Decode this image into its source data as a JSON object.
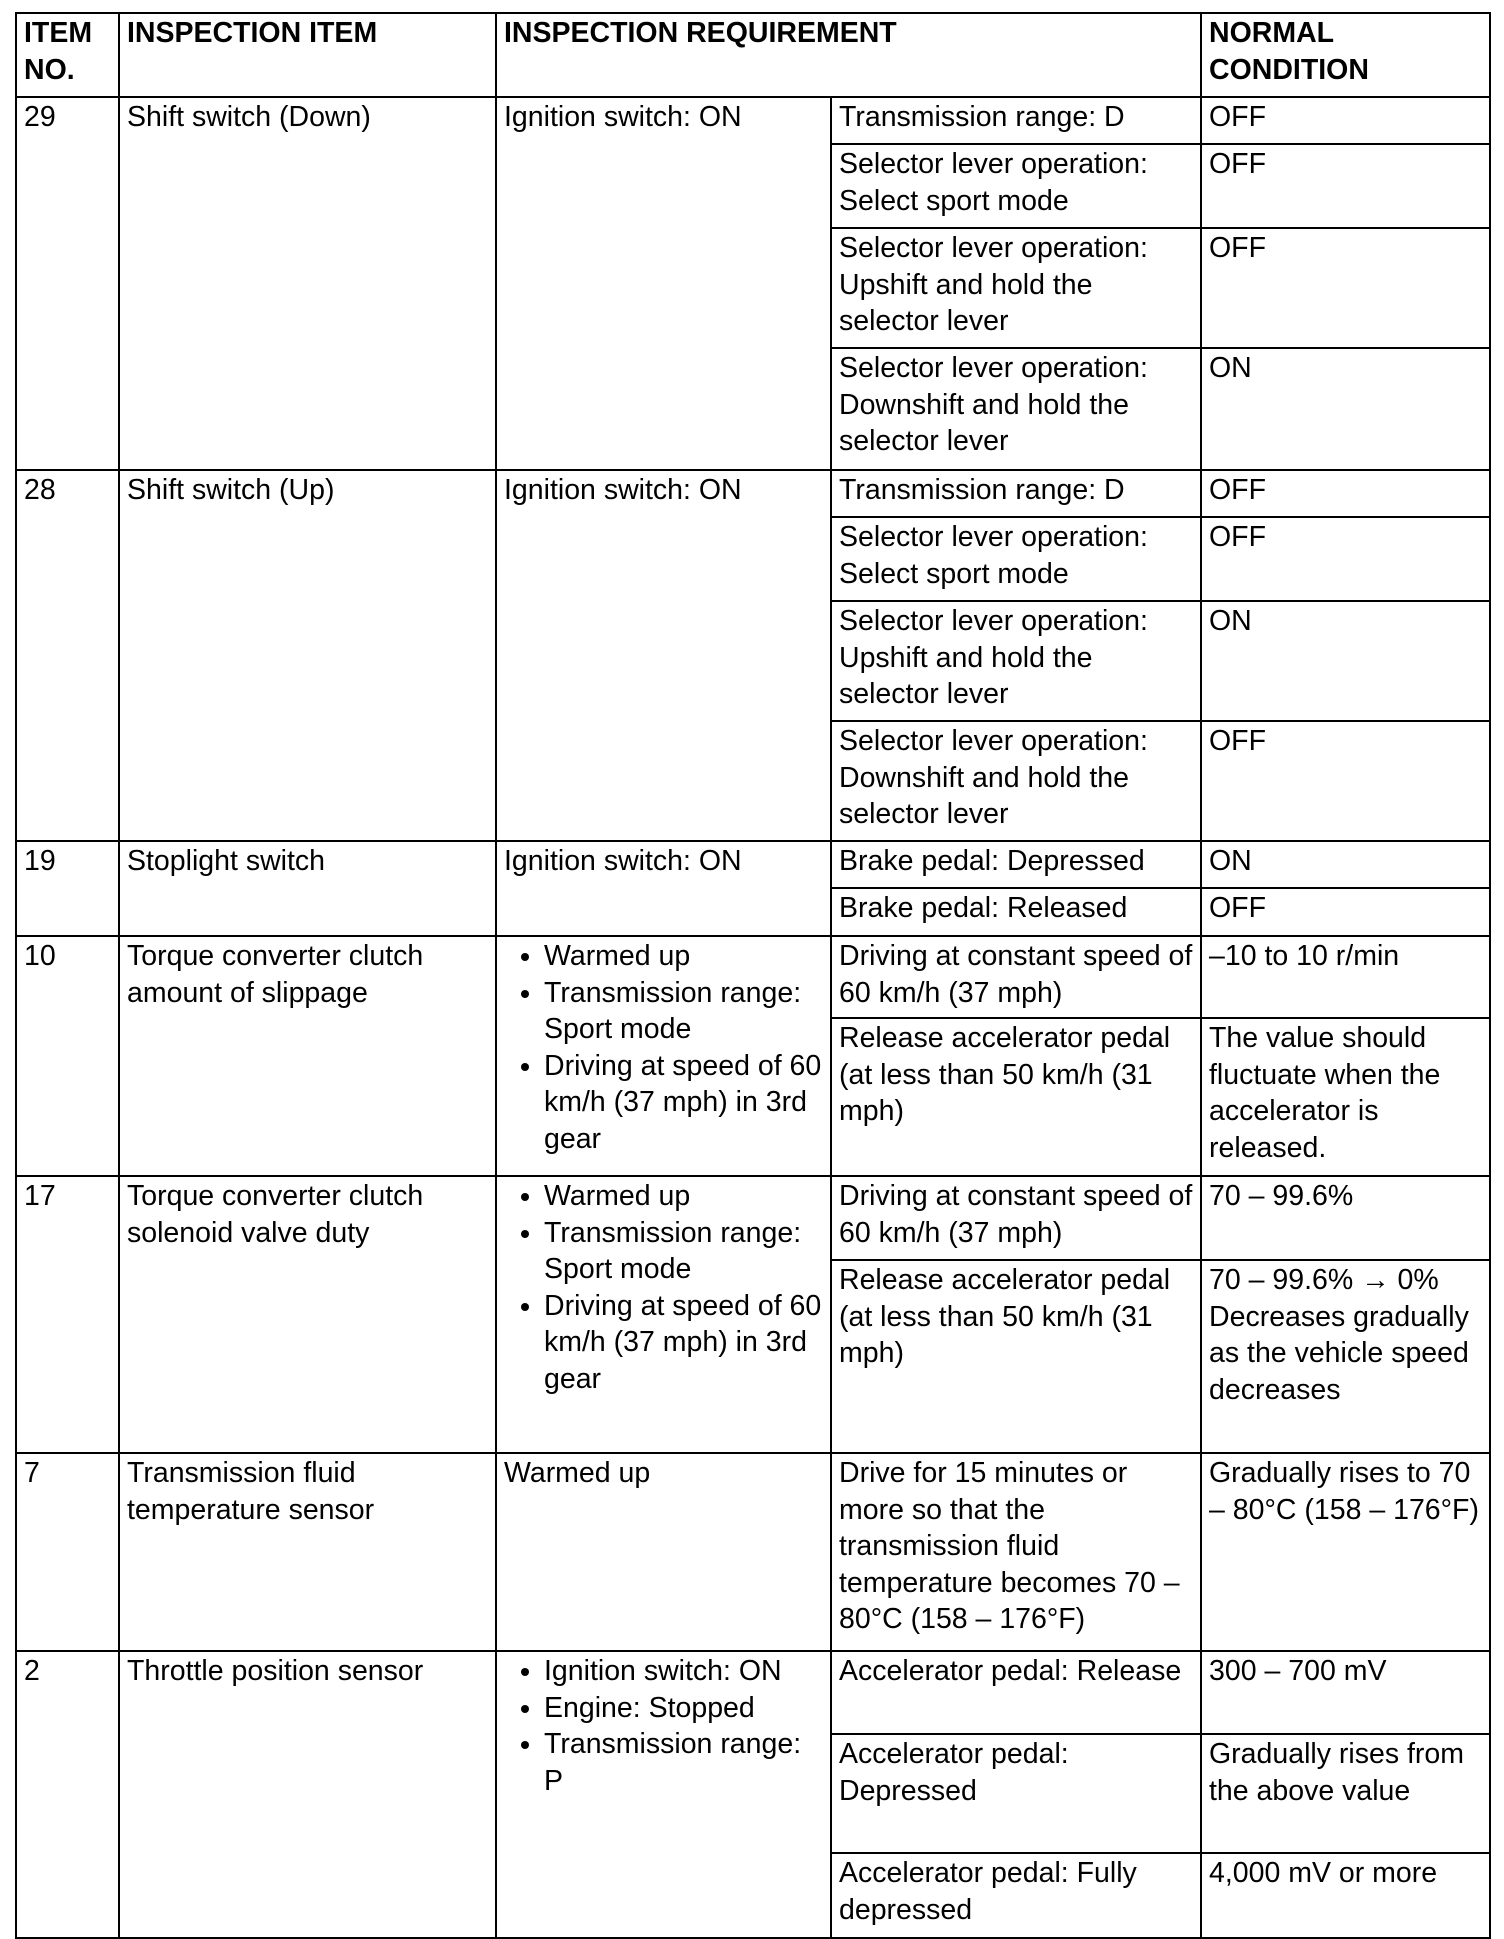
{
  "header": {
    "item_no": "ITEM NO.",
    "inspection_item": "INSPECTION ITEM",
    "inspection_requirement": "INSPECTION REQUIREMENT",
    "normal_condition": "NORMAL CONDITION"
  },
  "rows": [
    {
      "no": "29",
      "item": "Shift switch (Down)",
      "requirement": [
        "Ignition switch: ON"
      ],
      "bulleted": false,
      "conditions": [
        {
          "condition": "Transmission range: D",
          "normal": "OFF"
        },
        {
          "condition": "Selector lever operation: Select sport mode",
          "normal": "OFF"
        },
        {
          "condition": "Selector lever operation: Upshift and hold the selector lever",
          "normal": "OFF"
        },
        {
          "condition": "Selector lever operation: Downshift and hold the selector lever",
          "normal": "ON"
        }
      ]
    },
    {
      "no": "28",
      "item": "Shift switch (Up)",
      "requirement": [
        "Ignition switch: ON"
      ],
      "bulleted": false,
      "conditions": [
        {
          "condition": "Transmission range: D",
          "normal": "OFF"
        },
        {
          "condition": "Selector lever operation: Select sport mode",
          "normal": "OFF"
        },
        {
          "condition": "Selector lever operation: Upshift and hold the selector lever",
          "normal": "ON"
        },
        {
          "condition": "Selector lever operation: Downshift and hold the selector lever",
          "normal": "OFF"
        }
      ]
    },
    {
      "no": "19",
      "item": "Stoplight switch",
      "requirement": [
        "Ignition switch: ON"
      ],
      "bulleted": false,
      "conditions": [
        {
          "condition": "Brake pedal: Depressed",
          "normal": "ON"
        },
        {
          "condition": "Brake pedal: Released",
          "normal": "OFF"
        }
      ]
    },
    {
      "no": "10",
      "item": "Torque converter clutch amount of slippage",
      "requirement": [
        "Warmed up",
        "Transmission range: Sport mode",
        "Driving at speed of 60 km/h (37 mph) in 3rd gear"
      ],
      "bulleted": true,
      "conditions": [
        {
          "condition": "Driving at constant speed of 60 km/h (37 mph)",
          "normal": "–10 to 10 r/min"
        },
        {
          "condition": "Release accelerator pedal (at less than 50 km/h (31 mph)",
          "normal": "The value should fluctuate when the accelerator is released."
        }
      ]
    },
    {
      "no": "17",
      "item": "Torque converter clutch solenoid valve duty",
      "requirement": [
        "Warmed up",
        "Transmission range: Sport mode",
        "Driving at speed of 60 km/h (37 mph) in 3rd gear"
      ],
      "bulleted": true,
      "conditions": [
        {
          "condition": "Driving at constant speed of 60 km/h (37 mph)",
          "normal": "70 – 99.6%"
        },
        {
          "condition": "Release accelerator pedal (at less than 50 km/h (31 mph)",
          "normal": "70 – 99.6% → 0% Decreases gradually as the vehicle speed decreases"
        }
      ]
    },
    {
      "no": "7",
      "item": "Transmission fluid temperature sensor",
      "requirement": [
        "Warmed up"
      ],
      "bulleted": false,
      "conditions": [
        {
          "condition": "Drive for 15 minutes or more so that the transmission fluid temperature becomes 70 – 80°C (158 – 176°F)",
          "normal": "Gradually rises to 70 – 80°C (158 – 176°F)"
        }
      ]
    },
    {
      "no": "2",
      "item": "Throttle position sensor",
      "requirement": [
        "Ignition switch: ON",
        "Engine: Stopped",
        "Transmission range: P"
      ],
      "bulleted": true,
      "conditions": [
        {
          "condition": "Accelerator pedal: Release",
          "normal": "300 – 700 mV"
        },
        {
          "condition": "Accelerator pedal: Depressed",
          "normal": "Gradually rises from the above value"
        },
        {
          "condition": "Accelerator pedal: Fully depressed",
          "normal": "4,000 mV or more"
        }
      ]
    }
  ]
}
